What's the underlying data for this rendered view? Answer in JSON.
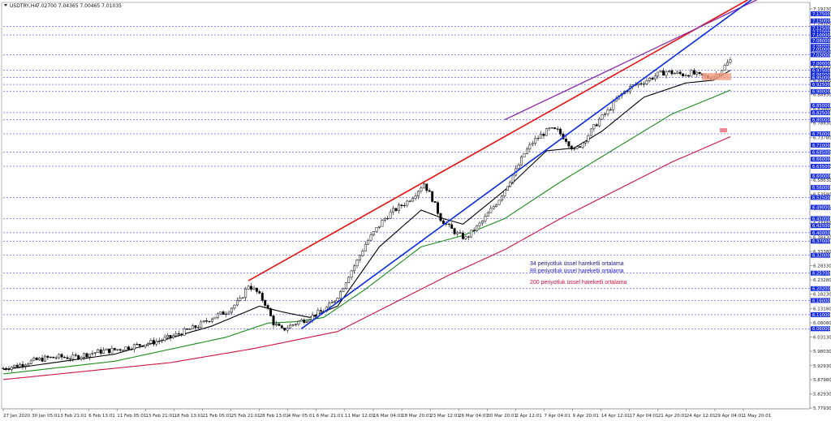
{
  "header": {
    "symbol": "USDTRY,H4",
    "ohlc": "7.02700 7.04365 7.00465 7.01035"
  },
  "legend": {
    "ema34": "34 periyotluk üssel hareketli ortalama",
    "ema89": "89 periyotluk üssel hareketli ortalama",
    "ema200": "200 periyotluk üssel hareketli ortalama"
  },
  "colors": {
    "background": "#ffffff",
    "candle": "#000000",
    "ema34": "#000000",
    "ema89": "#1a8a1a",
    "ema200": "#d01040",
    "channel_top": "#e8100c",
    "channel_inner": "#8a2aa8",
    "support": "#0a2ce0",
    "hline": "#1a1aff",
    "highlight": "#f59c7c",
    "marker": "#f07080"
  },
  "chart_data": {
    "type": "candlestick",
    "ylim": [
      5.7793,
      7.1923
    ],
    "x_tick_labels": [
      "27 Jan 2020",
      "30 Jan 05:01",
      "3 Feb 21:01",
      "6 Feb 13:01",
      "11 Feb 05:01",
      "13 Feb 21:01",
      "18 Feb 13:01",
      "21 Feb 05:01",
      "25 Feb 21:01",
      "28 Feb 13:01",
      "4 Mar 05:01",
      "6 Mar 21:01",
      "11 Mar 12:01",
      "16 Mar 04:01",
      "18 Mar 20:01",
      "23 Mar 12:01",
      "26 Mar 04:01",
      "30 Mar 20:01",
      "2 Apr 12:01",
      "7 Apr 04:01",
      "9 Apr 20:01",
      "14 Apr 12:01",
      "17 Apr 04:01",
      "21 Apr 20:01",
      "24 Apr 12:01",
      "29 Apr 04:01",
      "1 May 20:01"
    ],
    "y_tick_labels": [
      "7.19230",
      "7.14180",
      "7.09130",
      "7.04080",
      "6.99030",
      "6.93980",
      "6.88930",
      "6.83880",
      "6.78830",
      "6.73780",
      "6.68730",
      "6.63680",
      "6.58630",
      "6.53580",
      "6.48530",
      "6.43480",
      "6.38430",
      "6.33380",
      "6.28330",
      "6.23280",
      "6.18230",
      "6.13180",
      "6.08080",
      "6.03130",
      "5.98030",
      "5.92930",
      "5.87980",
      "5.82930",
      "5.77930"
    ],
    "price_boxes": [
      "7.17500",
      "7.15000",
      "7.12500",
      "7.11000",
      "7.10000",
      "7.08000",
      "7.06000",
      "7.05000",
      "7.03000",
      "7.00000",
      "6.97500",
      "6.96000",
      "6.95000",
      "6.92500",
      "6.90000",
      "6.85000",
      "6.82500",
      "6.80000",
      "6.75000",
      "6.71000",
      "6.68500",
      "6.66000",
      "6.63500",
      "6.60000",
      "6.56000",
      "6.52500",
      "6.49000",
      "6.45000",
      "6.42500",
      "6.40000",
      "6.37000",
      "6.32000",
      "6.25700",
      "6.20200",
      "6.16000",
      "6.11000",
      "6.06000"
    ],
    "key_levels": [
      7.1,
      7.03,
      6.975,
      6.95,
      6.925,
      6.9,
      6.825,
      6.8,
      6.75,
      6.685,
      6.635,
      6.525,
      6.45,
      6.4,
      6.37,
      6.32,
      6.257,
      6.202,
      6.16,
      6.11,
      6.06,
      7.13
    ],
    "close_path": [
      [
        0,
        5.92
      ],
      [
        5,
        5.93
      ],
      [
        10,
        5.945
      ],
      [
        15,
        5.955
      ],
      [
        20,
        5.96
      ],
      [
        25,
        5.958
      ],
      [
        30,
        5.97
      ],
      [
        35,
        5.98
      ],
      [
        40,
        5.985
      ],
      [
        45,
        5.995
      ],
      [
        50,
        6.005
      ],
      [
        55,
        6.015
      ],
      [
        60,
        6.03
      ],
      [
        65,
        6.05
      ],
      [
        70,
        6.07
      ],
      [
        75,
        6.1
      ],
      [
        80,
        6.12
      ],
      [
        85,
        6.16
      ],
      [
        88,
        6.215
      ],
      [
        91,
        6.19
      ],
      [
        94,
        6.15
      ],
      [
        97,
        6.08
      ],
      [
        100,
        6.055
      ],
      [
        103,
        6.07
      ],
      [
        106,
        6.085
      ],
      [
        109,
        6.095
      ],
      [
        112,
        6.11
      ],
      [
        115,
        6.125
      ],
      [
        118,
        6.15
      ],
      [
        121,
        6.19
      ],
      [
        124,
        6.25
      ],
      [
        127,
        6.3
      ],
      [
        130,
        6.36
      ],
      [
        133,
        6.4
      ],
      [
        136,
        6.44
      ],
      [
        139,
        6.47
      ],
      [
        142,
        6.49
      ],
      [
        145,
        6.51
      ],
      [
        148,
        6.54
      ],
      [
        151,
        6.575
      ],
      [
        154,
        6.52
      ],
      [
        157,
        6.45
      ],
      [
        160,
        6.42
      ],
      [
        163,
        6.395
      ],
      [
        166,
        6.38
      ],
      [
        169,
        6.41
      ],
      [
        172,
        6.44
      ],
      [
        175,
        6.48
      ],
      [
        178,
        6.52
      ],
      [
        181,
        6.57
      ],
      [
        184,
        6.62
      ],
      [
        187,
        6.68
      ],
      [
        190,
        6.72
      ],
      [
        193,
        6.745
      ],
      [
        196,
        6.765
      ],
      [
        199,
        6.76
      ],
      [
        202,
        6.73
      ],
      [
        205,
        6.69
      ],
      [
        208,
        6.72
      ],
      [
        211,
        6.76
      ],
      [
        214,
        6.8
      ],
      [
        217,
        6.83
      ],
      [
        220,
        6.87
      ],
      [
        223,
        6.9
      ],
      [
        226,
        6.92
      ],
      [
        229,
        6.93
      ],
      [
        232,
        6.945
      ],
      [
        235,
        6.96
      ],
      [
        238,
        6.97
      ],
      [
        241,
        6.965
      ],
      [
        244,
        6.96
      ],
      [
        247,
        6.965
      ],
      [
        250,
        6.955
      ],
      [
        253,
        6.95
      ],
      [
        256,
        6.96
      ],
      [
        259,
        6.99
      ],
      [
        261,
        7.01
      ]
    ],
    "ema34_points": [
      [
        0,
        5.915
      ],
      [
        40,
        5.97
      ],
      [
        75,
        6.07
      ],
      [
        92,
        6.14
      ],
      [
        100,
        6.12
      ],
      [
        110,
        6.1
      ],
      [
        120,
        6.14
      ],
      [
        135,
        6.35
      ],
      [
        150,
        6.48
      ],
      [
        158,
        6.45
      ],
      [
        165,
        6.43
      ],
      [
        180,
        6.55
      ],
      [
        195,
        6.69
      ],
      [
        205,
        6.7
      ],
      [
        215,
        6.76
      ],
      [
        230,
        6.88
      ],
      [
        245,
        6.93
      ],
      [
        255,
        6.94
      ],
      [
        261,
        6.975
      ]
    ],
    "ema89_points": [
      [
        0,
        5.9
      ],
      [
        40,
        5.945
      ],
      [
        80,
        6.03
      ],
      [
        95,
        6.08
      ],
      [
        105,
        6.085
      ],
      [
        115,
        6.1
      ],
      [
        130,
        6.2
      ],
      [
        150,
        6.35
      ],
      [
        165,
        6.39
      ],
      [
        180,
        6.45
      ],
      [
        200,
        6.58
      ],
      [
        220,
        6.7
      ],
      [
        240,
        6.82
      ],
      [
        255,
        6.88
      ],
      [
        261,
        6.905
      ]
    ],
    "ema200_points": [
      [
        0,
        5.88
      ],
      [
        60,
        5.94
      ],
      [
        90,
        5.99
      ],
      [
        105,
        6.02
      ],
      [
        120,
        6.05
      ],
      [
        140,
        6.15
      ],
      [
        160,
        6.25
      ],
      [
        180,
        6.34
      ],
      [
        200,
        6.45
      ],
      [
        220,
        6.55
      ],
      [
        240,
        6.65
      ],
      [
        261,
        6.74
      ]
    ],
    "channel_top_line": [
      [
        88,
        6.23
      ],
      [
        261,
        7.19
      ]
    ],
    "channel_inner_line": [
      [
        180,
        6.8
      ],
      [
        261,
        7.18
      ]
    ],
    "support_line": [
      [
        107,
        6.06
      ],
      [
        261,
        7.17
      ]
    ],
    "bar_count": 262
  }
}
